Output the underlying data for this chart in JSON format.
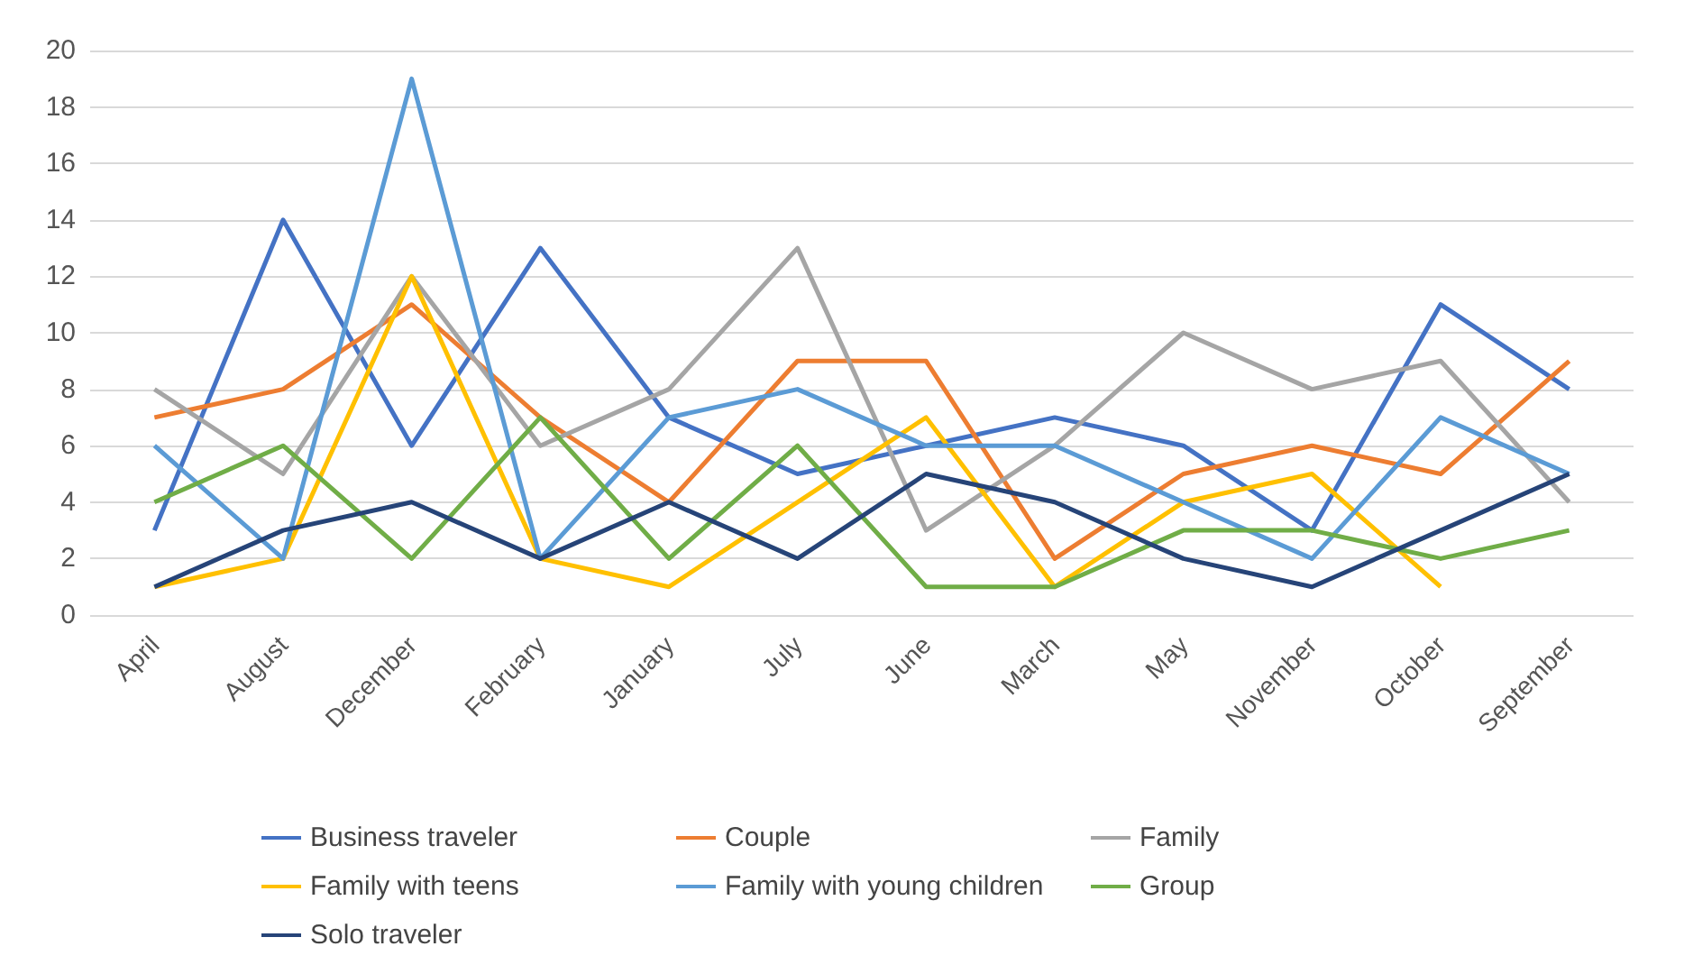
{
  "chart_data": {
    "type": "line",
    "categories": [
      "April",
      "August",
      "December",
      "February",
      "January",
      "July",
      "June",
      "March",
      "May",
      "November",
      "October",
      "September"
    ],
    "series": [
      {
        "name": "Business traveler",
        "color": "#4472c4",
        "values": [
          3,
          14,
          6,
          13,
          7,
          5,
          6,
          7,
          6,
          3,
          11,
          8
        ]
      },
      {
        "name": "Couple",
        "color": "#ed7d31",
        "values": [
          7,
          8,
          11,
          7,
          4,
          9,
          9,
          2,
          5,
          6,
          5,
          9
        ]
      },
      {
        "name": "Family",
        "color": "#a5a5a5",
        "values": [
          8,
          5,
          12,
          6,
          8,
          13,
          3,
          6,
          10,
          8,
          9,
          4
        ]
      },
      {
        "name": "Family with teens",
        "color": "#ffc000",
        "values": [
          1,
          2,
          12,
          2,
          1,
          4,
          7,
          1,
          4,
          5,
          1,
          null
        ]
      },
      {
        "name": "Family with young children",
        "color": "#5b9bd5",
        "values": [
          6,
          2,
          19,
          2,
          7,
          8,
          6,
          6,
          4,
          2,
          7,
          5
        ]
      },
      {
        "name": "Group",
        "color": "#70ad47",
        "values": [
          4,
          6,
          2,
          7,
          2,
          6,
          1,
          1,
          3,
          3,
          2,
          3
        ]
      },
      {
        "name": "Solo traveler",
        "color": "#264478",
        "values": [
          1,
          3,
          4,
          2,
          4,
          2,
          5,
          4,
          2,
          1,
          3,
          5
        ]
      }
    ],
    "ylim": [
      0,
      20
    ],
    "yticks": [
      0,
      2,
      4,
      6,
      8,
      10,
      12,
      14,
      16,
      18,
      20
    ],
    "grid": "y",
    "legend": "bottom",
    "marker": "none",
    "line_style": "solid"
  }
}
